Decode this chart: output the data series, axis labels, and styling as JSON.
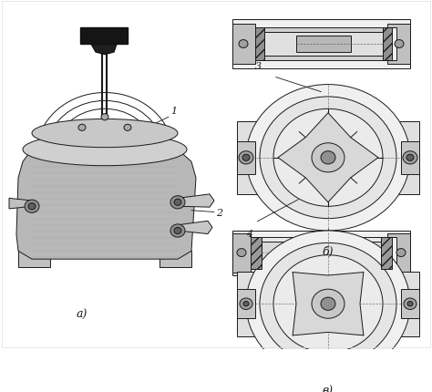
{
  "title": "",
  "background_color": "#ffffff",
  "label_a": "а)",
  "label_b": "б)",
  "label_v": "в)",
  "label_1": "1",
  "label_2": "2",
  "label_3": "3",
  "label_4": "4",
  "fig_width": 4.74,
  "fig_height": 4.31,
  "dpi": 100,
  "line_color": "#1a1a1a",
  "fill_color": "#d0d0d0",
  "dark_fill": "#404040",
  "hatch_color": "#555555",
  "crosshatch": "///",
  "line_width": 0.7
}
